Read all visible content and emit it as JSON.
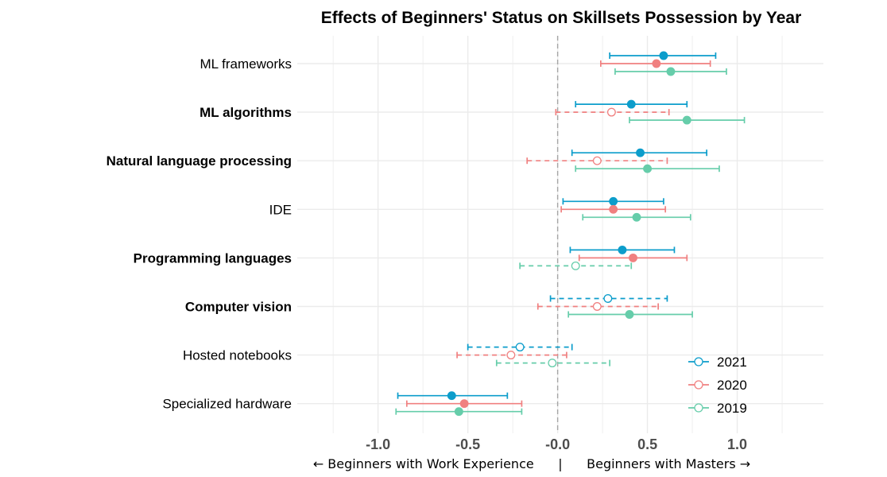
{
  "chart_data": {
    "type": "forest",
    "title": "Effects of Beginners' Status on Skillsets Possession by Year",
    "xlabel": "← Beginners with Work Experience      |      Beginners with Masters →",
    "xlim": [
      -1.45,
      1.48
    ],
    "xticks": [
      -1.0,
      -0.5,
      -0.0,
      0.5,
      1.0
    ],
    "xtick_labels": [
      "-1.0",
      "-0.5",
      "-0.0",
      "0.5",
      "1.0"
    ],
    "reference_line": 0,
    "grid": true,
    "legend_position": "bottom-right",
    "categories": [
      {
        "label": "ML frameworks",
        "bold": false
      },
      {
        "label": "ML algorithms",
        "bold": true
      },
      {
        "label": "Natural language processing",
        "bold": true
      },
      {
        "label": "IDE",
        "bold": false
      },
      {
        "label": "Programming languages",
        "bold": true
      },
      {
        "label": "Computer vision",
        "bold": true
      },
      {
        "label": "Hosted notebooks",
        "bold": false
      },
      {
        "label": "Specialized hardware",
        "bold": false
      }
    ],
    "series": [
      {
        "name": "2021",
        "color": "#0C9DCB",
        "points": [
          {
            "estimate": 0.59,
            "low": 0.29,
            "high": 0.88,
            "significant": true
          },
          {
            "estimate": 0.41,
            "low": 0.1,
            "high": 0.72,
            "significant": true
          },
          {
            "estimate": 0.46,
            "low": 0.08,
            "high": 0.83,
            "significant": true
          },
          {
            "estimate": 0.31,
            "low": 0.03,
            "high": 0.59,
            "significant": true
          },
          {
            "estimate": 0.36,
            "low": 0.07,
            "high": 0.65,
            "significant": true
          },
          {
            "estimate": 0.28,
            "low": -0.04,
            "high": 0.61,
            "significant": false
          },
          {
            "estimate": -0.21,
            "low": -0.5,
            "high": 0.08,
            "significant": false
          },
          {
            "estimate": -0.59,
            "low": -0.89,
            "high": -0.28,
            "significant": true
          }
        ]
      },
      {
        "name": "2020",
        "color": "#F08080",
        "points": [
          {
            "estimate": 0.55,
            "low": 0.24,
            "high": 0.85,
            "significant": true
          },
          {
            "estimate": 0.3,
            "low": -0.01,
            "high": 0.62,
            "significant": false
          },
          {
            "estimate": 0.22,
            "low": -0.17,
            "high": 0.61,
            "significant": false
          },
          {
            "estimate": 0.31,
            "low": 0.02,
            "high": 0.6,
            "significant": true
          },
          {
            "estimate": 0.42,
            "low": 0.12,
            "high": 0.72,
            "significant": true
          },
          {
            "estimate": 0.22,
            "low": -0.11,
            "high": 0.56,
            "significant": false
          },
          {
            "estimate": -0.26,
            "low": -0.56,
            "high": 0.05,
            "significant": false
          },
          {
            "estimate": -0.52,
            "low": -0.84,
            "high": -0.2,
            "significant": true
          }
        ]
      },
      {
        "name": "2019",
        "color": "#66CDAA",
        "points": [
          {
            "estimate": 0.63,
            "low": 0.32,
            "high": 0.94,
            "significant": true
          },
          {
            "estimate": 0.72,
            "low": 0.4,
            "high": 1.04,
            "significant": true
          },
          {
            "estimate": 0.5,
            "low": 0.1,
            "high": 0.9,
            "significant": true
          },
          {
            "estimate": 0.44,
            "low": 0.14,
            "high": 0.74,
            "significant": true
          },
          {
            "estimate": 0.1,
            "low": -0.21,
            "high": 0.41,
            "significant": false
          },
          {
            "estimate": 0.4,
            "low": 0.06,
            "high": 0.75,
            "significant": true
          },
          {
            "estimate": -0.03,
            "low": -0.34,
            "high": 0.29,
            "significant": false
          },
          {
            "estimate": -0.55,
            "low": -0.9,
            "high": -0.2,
            "significant": true
          }
        ]
      }
    ]
  }
}
